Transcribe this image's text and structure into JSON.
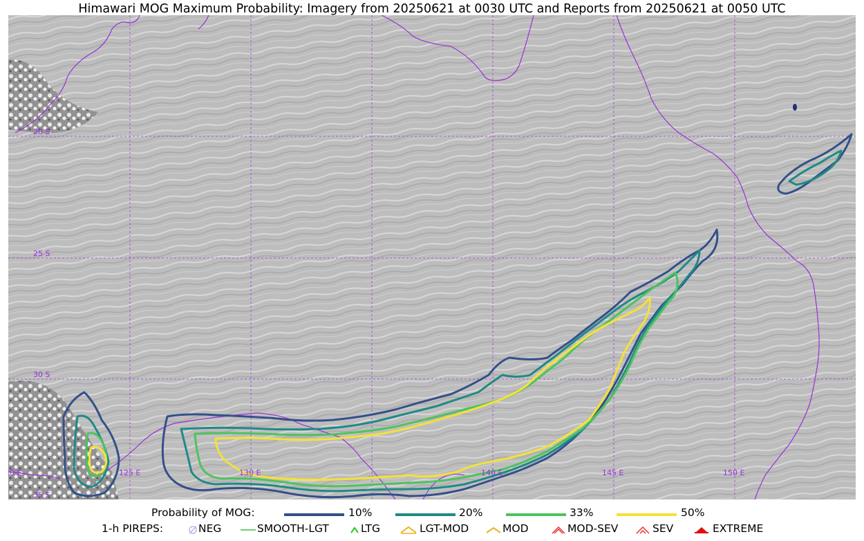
{
  "title": "Himawari MOG Maximum Probability: Imagery from 20250621 at 0030 UTC and Reports from 20250621 at 0050 UTC",
  "map": {
    "lat_labels": [
      "20 S",
      "25 S",
      "30 S",
      "35 S"
    ],
    "lon_labels": [
      "120 E",
      "125 E",
      "130 E",
      "140 E",
      "145 E",
      "150 E"
    ],
    "grid_color": "#9b40d6",
    "coast_color": "#9b30d9"
  },
  "legend": {
    "prob_title": "Probability of MOG:",
    "prob_levels": [
      {
        "label": "10%",
        "color": "#33508a"
      },
      {
        "label": "20%",
        "color": "#1f8a85"
      },
      {
        "label": "33%",
        "color": "#4ec35e"
      },
      {
        "label": "50%",
        "color": "#f5e13a"
      }
    ],
    "pirep_title": "1-h PIREPS:",
    "pireps": [
      {
        "label": "NEG",
        "icon": "neg-icon",
        "color": "#b8b8ee"
      },
      {
        "label": "SMOOTH-LGT",
        "icon": "smooth-lgt-icon",
        "color": "#3ac23a"
      },
      {
        "label": "LTG",
        "icon": "ltg-icon",
        "color": "#22cc22"
      },
      {
        "label": "LGT-MOD",
        "icon": "lgt-mod-icon",
        "color": "#f0b020"
      },
      {
        "label": "MOD",
        "icon": "mod-icon",
        "color": "#f0b020"
      },
      {
        "label": "MOD-SEV",
        "icon": "mod-sev-icon",
        "color": "#e83030"
      },
      {
        "label": "SEV",
        "icon": "sev-icon",
        "color": "#e83030"
      },
      {
        "label": "EXTREME",
        "icon": "extreme-icon",
        "color": "#e01010"
      }
    ]
  }
}
